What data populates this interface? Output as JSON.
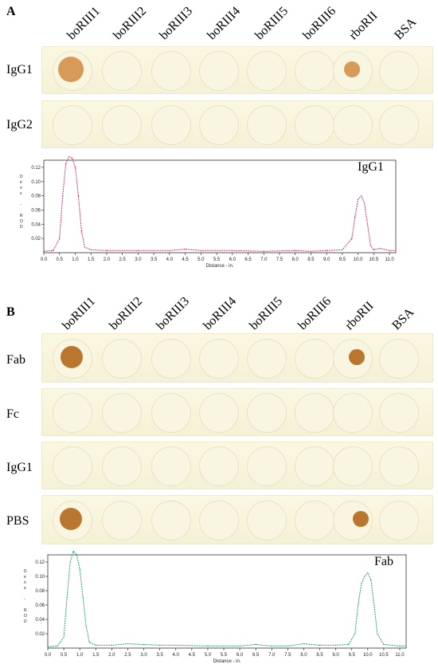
{
  "panels": [
    {
      "label": "A",
      "columns": [
        "boRIII1",
        "boRIII2",
        "boRIII3",
        "boRIII4",
        "boRIII5",
        "boRIII6",
        "rboRII",
        "BSA"
      ],
      "rows": [
        "IgG1",
        "IgG2"
      ],
      "plot_title": "IgG1"
    },
    {
      "label": "B",
      "columns": [
        "boRIII1",
        "boRIII2",
        "boRIII3",
        "boRIII4",
        "boRIII5",
        "boRIII6",
        "rboRII",
        "BSA"
      ],
      "rows": [
        "Fab",
        "Fc",
        "IgG1",
        "PBS"
      ],
      "plot_title": "Fab"
    }
  ],
  "colors": {
    "spot_light": "#d89a59",
    "spot_dark": "#b8762e",
    "trace_A": "#cc3377",
    "trace_B": "#2aa56a",
    "strip": "#f7f3dc"
  },
  "chart_data": [
    {
      "type": "line",
      "title": "IgG1",
      "xlabel": "Distance - in.",
      "ylabel": "Dens - ROD",
      "xlim": [
        0,
        11.2
      ],
      "ylim": [
        0,
        0.13
      ],
      "xticks": [
        "0.0",
        "0.5",
        "1.0",
        "1.5",
        "2.0",
        "2.5",
        "3.0",
        "3.5",
        "4.0",
        "4.5",
        "5.0",
        "5.5",
        "6.0",
        "6.5",
        "7.0",
        "7.5",
        "8.0",
        "8.5",
        "9.0",
        "9.5",
        "10.0",
        "10.5",
        "11.0"
      ],
      "yticks": [
        "0.02",
        "0.04",
        "0.06",
        "0.08",
        "0.10",
        "0.12"
      ],
      "x": [
        0.0,
        0.3,
        0.5,
        0.6,
        0.7,
        0.8,
        0.9,
        1.0,
        1.1,
        1.2,
        1.3,
        1.5,
        2.0,
        3.0,
        4.0,
        4.5,
        5.0,
        6.0,
        7.0,
        8.0,
        8.5,
        9.0,
        9.5,
        9.8,
        9.9,
        10.0,
        10.1,
        10.2,
        10.3,
        10.4,
        10.5,
        10.7,
        11.0,
        11.2
      ],
      "y": [
        0.002,
        0.003,
        0.02,
        0.08,
        0.125,
        0.135,
        0.133,
        0.12,
        0.08,
        0.03,
        0.008,
        0.004,
        0.003,
        0.003,
        0.003,
        0.005,
        0.003,
        0.003,
        0.002,
        0.003,
        0.002,
        0.003,
        0.004,
        0.02,
        0.05,
        0.075,
        0.08,
        0.07,
        0.04,
        0.01,
        0.004,
        0.006,
        0.003,
        0.003
      ]
    },
    {
      "type": "line",
      "title": "Fab",
      "xlabel": "Distance - in.",
      "ylabel": "Dens - ROD",
      "xlim": [
        0,
        11.2
      ],
      "ylim": [
        0,
        0.13
      ],
      "xticks": [
        "0.0",
        "0.5",
        "1.0",
        "1.5",
        "2.0",
        "2.5",
        "3.0",
        "3.5",
        "4.0",
        "4.5",
        "5.0",
        "5.5",
        "6.0",
        "6.5",
        "7.0",
        "7.5",
        "8.0",
        "8.5",
        "9.0",
        "9.5",
        "10.0",
        "10.5",
        "11.0"
      ],
      "yticks": [
        "0.02",
        "0.04",
        "0.06",
        "0.08",
        "0.10",
        "0.12"
      ],
      "x": [
        0.0,
        0.3,
        0.5,
        0.6,
        0.7,
        0.8,
        0.9,
        1.0,
        1.1,
        1.2,
        1.3,
        1.5,
        2.0,
        2.5,
        3.0,
        3.5,
        4.0,
        5.0,
        6.0,
        6.5,
        7.0,
        7.5,
        8.0,
        8.5,
        9.0,
        9.4,
        9.6,
        9.7,
        9.8,
        9.9,
        10.0,
        10.1,
        10.2,
        10.3,
        10.5,
        11.0,
        11.2
      ],
      "y": [
        0.002,
        0.003,
        0.015,
        0.07,
        0.12,
        0.135,
        0.13,
        0.11,
        0.07,
        0.03,
        0.008,
        0.004,
        0.004,
        0.006,
        0.005,
        0.004,
        0.004,
        0.003,
        0.003,
        0.005,
        0.003,
        0.003,
        0.006,
        0.004,
        0.004,
        0.005,
        0.02,
        0.06,
        0.09,
        0.1,
        0.105,
        0.095,
        0.06,
        0.02,
        0.005,
        0.003,
        0.003
      ]
    }
  ]
}
